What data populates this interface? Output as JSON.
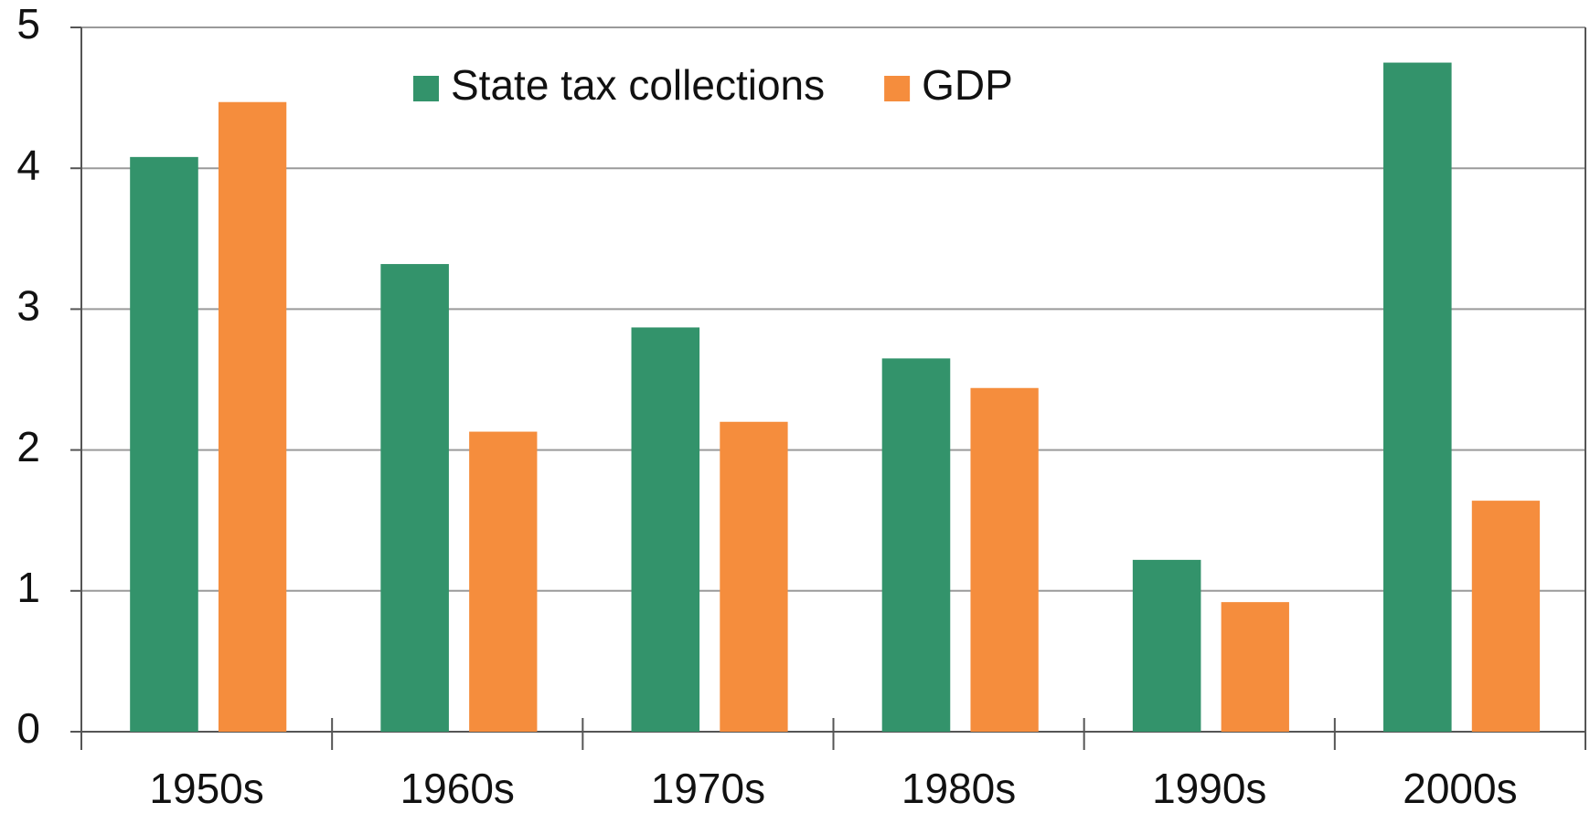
{
  "chart_data": {
    "type": "bar",
    "categories": [
      "1950s",
      "1960s",
      "1970s",
      "1980s",
      "1990s",
      "2000s"
    ],
    "series": [
      {
        "name": "State tax collections",
        "color": "#33936b",
        "values": [
          4.08,
          3.32,
          2.87,
          2.65,
          1.22,
          4.75
        ]
      },
      {
        "name": "GDP",
        "color": "#f58d3d",
        "values": [
          4.47,
          2.13,
          2.2,
          2.44,
          0.92,
          1.64
        ]
      }
    ],
    "ylim": [
      0,
      5
    ],
    "yticks": [
      0,
      1,
      2,
      3,
      4,
      5
    ],
    "grid": true,
    "legend": "top"
  }
}
